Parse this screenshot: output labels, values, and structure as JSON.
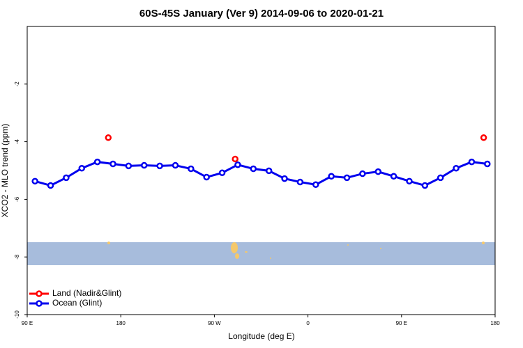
{
  "chart_data": {
    "type": "line",
    "title": "60S-45S January (Ver 9)   2014-09-06 to 2020-01-21",
    "x_label": "Longitude (deg E)",
    "y_label": "XCO2 - MLO trend (ppm)",
    "xlim": [
      90,
      540
    ],
    "xticks": [
      {
        "value": 90,
        "label": "90 E"
      },
      {
        "value": 180,
        "label": "180"
      },
      {
        "value": 270,
        "label": "90 W"
      },
      {
        "value": 360,
        "label": "0"
      },
      {
        "value": 450,
        "label": "90 E"
      },
      {
        "value": 540,
        "label": "180"
      }
    ],
    "ylim": [
      -10,
      0
    ],
    "yticks": [
      -10,
      -8,
      -6,
      -4,
      -2
    ],
    "legend": "bottom-left",
    "series": [
      {
        "name": "Land (Nadir&Glint)",
        "color": "#ff0000",
        "show_line": false,
        "x": [
          168,
          290,
          529
        ],
        "values": [
          -3.86,
          -4.6,
          -3.86
        ]
      },
      {
        "name": "Ocean (Glint)",
        "color": "#0000ee",
        "show_line": true,
        "x": [
          97.5,
          112.5,
          127.5,
          142.5,
          157.5,
          172.5,
          187.5,
          202.5,
          217.5,
          232.5,
          247.5,
          262.5,
          277.5,
          292.5,
          307.5,
          322.5,
          337.5,
          352.5,
          367.5,
          382.5,
          397.5,
          412.5,
          427.5,
          442.5,
          457.5,
          472.5,
          487.5,
          502.5,
          517.5,
          532.5
        ],
        "values": [
          -5.37,
          -5.52,
          -5.25,
          -4.92,
          -4.7,
          -4.77,
          -4.84,
          -4.82,
          -4.84,
          -4.82,
          -4.94,
          -5.23,
          -5.08,
          -4.8,
          -4.94,
          -5.01,
          -5.28,
          -5.4,
          -5.49,
          -5.2,
          -5.25,
          -5.11,
          -5.04,
          -5.2,
          -5.37,
          -5.52,
          -5.25,
          -4.92,
          -4.7,
          -4.77
        ]
      }
    ]
  }
}
